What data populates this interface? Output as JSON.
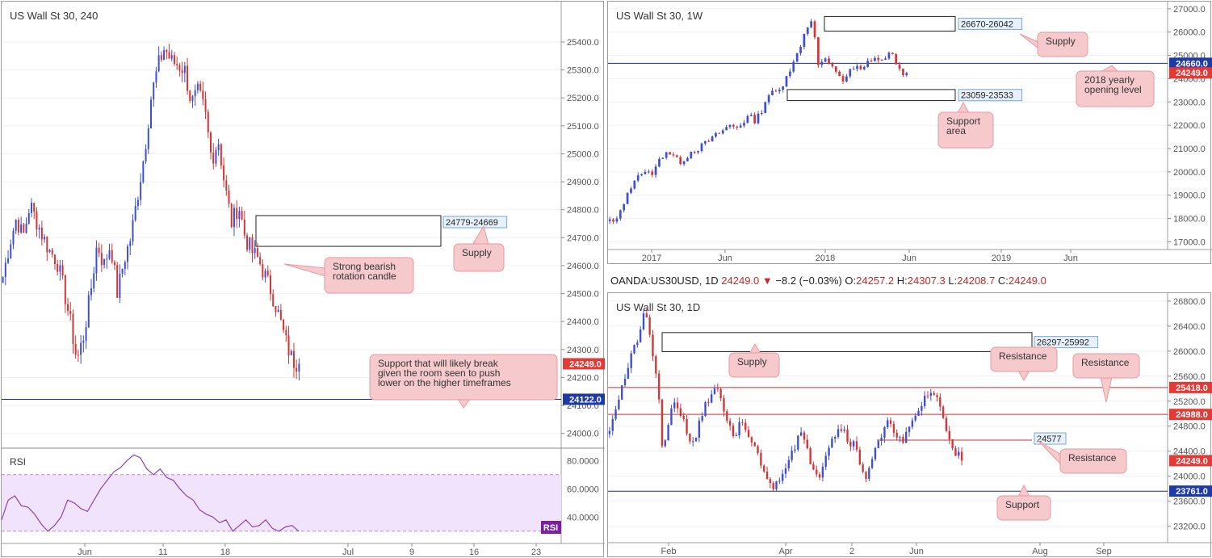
{
  "colors": {
    "bull": "#3f4fd1",
    "bear": "#d63535",
    "grid": "#eef0f4",
    "axis_text": "#555555",
    "price_tag": "#e53935",
    "blue_tag": "#1e3aa8",
    "note_bg": "#f6c9cc",
    "note_border": "#e69a9f",
    "rsi_fill": "#f1e3fb",
    "rsi_line": "#8e44ad"
  },
  "header": {
    "symbol": "OANDA:US30USD, 1D",
    "close_value": "24249.0",
    "change_arrow": "▼",
    "change": "−8.2 (−0.03%)",
    "o_label": "O:",
    "o_value": "24257.2",
    "h_label": "H:",
    "h_value": "24307.3",
    "l_label": "L:",
    "l_value": "24208.7",
    "c_label": "C:",
    "c_value": "24249.0"
  },
  "chart_data": [
    {
      "id": "h4",
      "type": "candlestick",
      "title": "US Wall St 30, 240",
      "ylim": [
        23950,
        25475
      ],
      "yticks": [
        "24000.0",
        "24100.0",
        "24200.0",
        "24300.0",
        "24400.0",
        "24500.0",
        "24600.0",
        "24700.0",
        "24800.0",
        "24900.0",
        "25000.0",
        "25100.0",
        "25200.0",
        "25300.0",
        "25400.0"
      ],
      "xticks": [
        "Jun",
        "11",
        "18",
        "Jul",
        "9",
        "16",
        "23"
      ],
      "last_price": "24249.0",
      "support_price": "24122.0",
      "zone": {
        "label": "24779-24669",
        "low": 24669,
        "high": 24779
      },
      "path": [
        24560,
        24680,
        24770,
        24700,
        24820,
        24760,
        24700,
        24650,
        24620,
        24520,
        24400,
        24260,
        24350,
        24500,
        24680,
        24600,
        24680,
        24500,
        24620,
        24700,
        24850,
        25000,
        25200,
        25310,
        25380,
        25330,
        25320,
        25300,
        25180,
        25220,
        25150,
        24980,
        25050,
        24880,
        24750,
        24820,
        24700,
        24650,
        24620,
        24560,
        24500,
        24420,
        24330,
        24260,
        24249
      ],
      "annotations": [
        {
          "text": "Supply"
        },
        {
          "text": "Strong bearish rotation candle"
        },
        {
          "text": "Support that will likely break given the room seen to push lower on the higher timeframes"
        }
      ],
      "rsi": {
        "label": "RSI",
        "badge": "RSI",
        "ylim": [
          23,
          87
        ],
        "yticks": [
          "40.0000",
          "60.0000",
          "80.0000"
        ],
        "upper": 70,
        "lower": 30,
        "values": [
          38,
          52,
          55,
          48,
          47,
          42,
          35,
          30,
          34,
          40,
          52,
          50,
          46,
          44,
          52,
          60,
          66,
          72,
          75,
          80,
          84,
          82,
          74,
          70,
          74,
          68,
          66,
          60,
          55,
          52,
          45,
          42,
          40,
          36,
          38,
          30,
          34,
          38,
          33,
          34,
          38,
          32,
          30,
          33,
          34,
          30
        ]
      }
    },
    {
      "id": "weekly",
      "type": "candlestick",
      "title": "US Wall St 30, 1W",
      "ylim": [
        16700,
        27100
      ],
      "yticks": [
        "17000.0",
        "18000.0",
        "19000.0",
        "20000.0",
        "21000.0",
        "22000.0",
        "23000.0",
        "24000.0",
        "25000.0",
        "26000.0",
        "27000.0"
      ],
      "xticks": [
        "2017",
        "Jun",
        "2018",
        "Jun",
        "2019",
        "Jun"
      ],
      "last_price": "24249.0",
      "level_price": "24660.0",
      "supply_zone": {
        "label": "26670-26042",
        "low": 26042,
        "high": 26670
      },
      "support_zone": {
        "label": "23059-23533",
        "low": 23059,
        "high": 23533
      },
      "path": [
        17900,
        17800,
        18600,
        19100,
        19800,
        19950,
        19900,
        20000,
        20600,
        20900,
        20700,
        20400,
        20600,
        20900,
        21000,
        21200,
        21400,
        21600,
        21800,
        22000,
        21900,
        22100,
        22400,
        22200,
        22600,
        23300,
        23400,
        23500,
        24200,
        24600,
        25300,
        26100,
        26616,
        24600,
        24800,
        24500,
        24300,
        23900,
        24300,
        24500,
        24300,
        24800,
        24900,
        24700,
        25100,
        24900,
        24300,
        24249
      ],
      "annotations": [
        {
          "text": "Supply"
        },
        {
          "text": "2018 yearly opening level"
        },
        {
          "text": "Support area"
        }
      ]
    },
    {
      "id": "daily",
      "type": "candlestick",
      "title": "US Wall St 30, 1D",
      "ylim": [
        22950,
        26850
      ],
      "yticks": [
        "23200.0",
        "23600.0",
        "24000.0",
        "24400.0",
        "24800.0",
        "25200.0",
        "25600.0",
        "26000.0",
        "26400.0",
        "26800.0"
      ],
      "xticks": [
        "Feb",
        "Apr",
        "2",
        "Jun",
        "Aug",
        "Sep"
      ],
      "last_price": "24249.0",
      "resistance_1": "25418.0",
      "resistance_2": "24988.0",
      "support_price": "23761.0",
      "minor_level": "24577",
      "supply_zone": {
        "label": "26297-25992",
        "low": 25992,
        "high": 26297
      },
      "path": [
        24800,
        25100,
        25400,
        25700,
        26000,
        26300,
        26616,
        26100,
        25500,
        24300,
        24900,
        25200,
        25000,
        24700,
        24500,
        24900,
        25100,
        25300,
        25500,
        25000,
        24800,
        24500,
        24900,
        24700,
        24500,
        24300,
        24100,
        23800,
        23900,
        24100,
        24300,
        24500,
        24700,
        24400,
        24200,
        24000,
        24300,
        24600,
        24700,
        24800,
        24600,
        24500,
        24200,
        24000,
        24300,
        24500,
        24700,
        24900,
        24700,
        24500,
        24700,
        24900,
        25100,
        25300,
        25350,
        25200,
        24900,
        24600,
        24400,
        24249
      ],
      "annotations": [
        {
          "text": "Supply"
        },
        {
          "text": "Resistance"
        },
        {
          "text": "Resistance"
        },
        {
          "text": "Resistance"
        },
        {
          "text": "Support"
        }
      ]
    }
  ]
}
